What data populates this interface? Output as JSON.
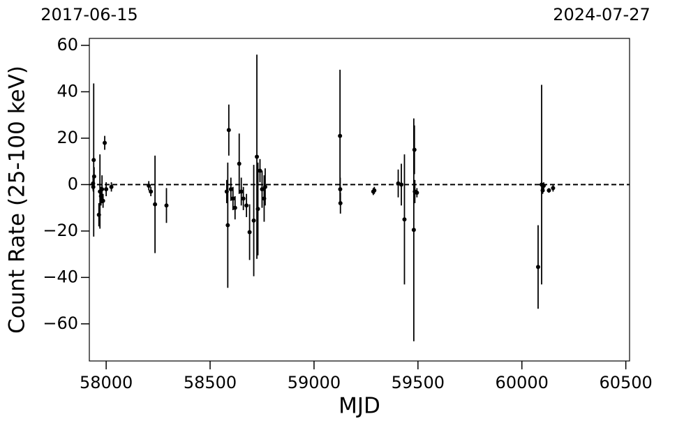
{
  "chart_data": {
    "type": "errorbar",
    "xlabel": "MJD",
    "ylabel": "Count Rate (25-100 keV)",
    "xlim": [
      57919,
      60518
    ],
    "ylim": [
      -76,
      63
    ],
    "xticks": [
      58000,
      58500,
      59000,
      59500,
      60000,
      60500
    ],
    "yticks": [
      {
        "value": -60,
        "label": "−60"
      },
      {
        "value": -40,
        "label": "−40"
      },
      {
        "value": -20,
        "label": "−20"
      },
      0,
      20,
      40,
      60
    ],
    "x2ticks": [
      {
        "value": 57919,
        "label": "2017-06-15"
      },
      {
        "value": 60518,
        "label": "2024-07-27"
      }
    ],
    "reference_line": 0,
    "color": "#000000",
    "x": [
      57940,
      57937,
      57938,
      57942,
      57965,
      57970,
      57975,
      57980,
      57993,
      57985,
      58000,
      58025,
      58205,
      58215,
      58235,
      58290,
      58580,
      58585,
      58590,
      58600,
      58610,
      58620,
      58640,
      58650,
      58660,
      58675,
      58690,
      58710,
      58725,
      58730,
      58740,
      58750,
      58760,
      58765,
      59125,
      59126,
      59127,
      59285,
      59290,
      59405,
      59420,
      59435,
      59480,
      59483,
      59485,
      59495,
      60078,
      60095,
      60100,
      60105,
      60130,
      60150
    ],
    "values": [
      10.6,
      0.5,
      -1,
      3.5,
      -13,
      -3,
      -5,
      -2,
      18,
      -7,
      -2,
      -1,
      -0.5,
      -3,
      -8.5,
      -9,
      -3,
      -17.5,
      23.5,
      -2,
      -6,
      -10,
      9,
      -3,
      -6,
      -9,
      -20.5,
      -15.5,
      12,
      -10.5,
      6,
      -2,
      -6,
      -1,
      21,
      -2,
      -8,
      -3,
      -2.5,
      0.5,
      0,
      -15,
      -19.5,
      15,
      -3,
      -3.5,
      -35.5,
      0,
      -2.5,
      -0.5,
      -2.5,
      -1.5
    ],
    "errors": [
      33,
      3,
      2,
      4,
      5,
      16,
      4,
      6,
      3,
      3,
      3,
      2,
      2,
      2,
      21,
      7.5,
      5,
      27,
      11,
      5,
      5,
      5,
      13,
      6,
      5,
      5,
      12,
      24,
      44,
      20,
      5,
      8,
      10,
      8,
      28.5,
      5,
      4.5,
      1.5,
      1.5,
      6,
      9,
      28,
      48,
      10.5,
      5,
      2,
      18,
      43,
      1.5,
      1.5,
      1,
      1.5
    ]
  }
}
